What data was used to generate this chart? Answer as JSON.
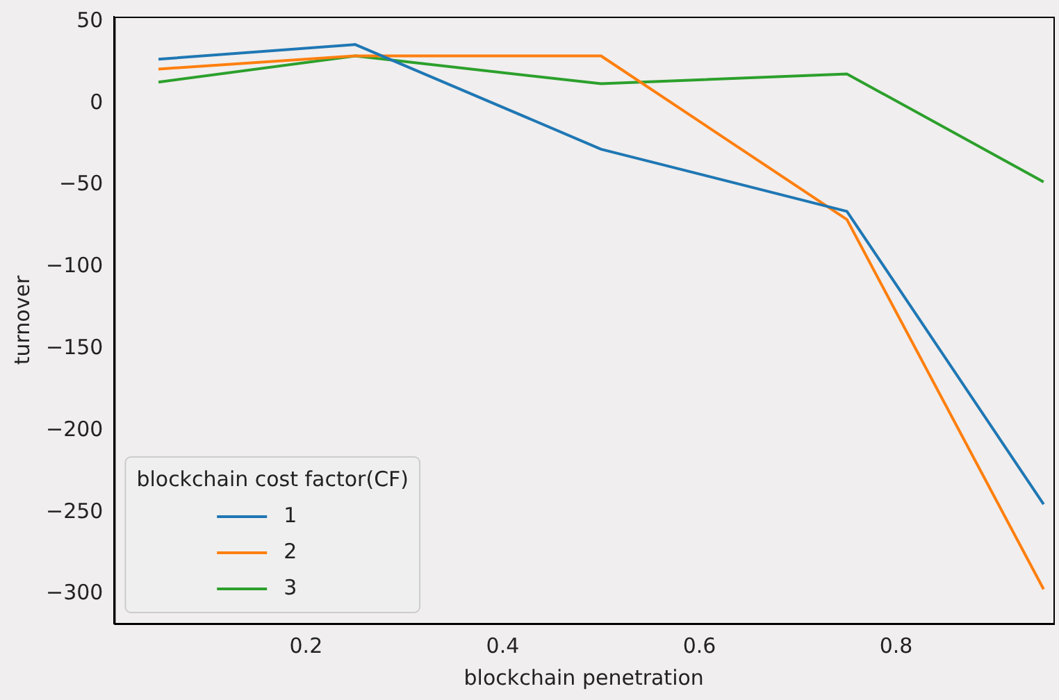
{
  "chart_data": {
    "type": "line",
    "xlabel": "blockchain penetration",
    "ylabel": "turnover",
    "legend_title": "blockchain cost factor(CF)",
    "legend": "bottom left",
    "grid": false,
    "marker": "none",
    "x": [
      0.05,
      0.25,
      0.5,
      0.75,
      0.95
    ],
    "xlim": [
      0.005,
      0.96
    ],
    "xticks": [
      0.2,
      0.4,
      0.6,
      0.8
    ],
    "ylim": [
      -318,
      53
    ],
    "yticks": [
      50,
      0,
      {
        "value": -50,
        "label": "−50"
      },
      {
        "value": -100,
        "label": "−100"
      },
      {
        "value": -150,
        "label": "−150"
      },
      {
        "value": -200,
        "label": "−200"
      },
      {
        "value": -250,
        "label": "−250"
      },
      {
        "value": -300,
        "label": "−300"
      }
    ],
    "series": [
      {
        "name": "1",
        "color": "#1f77b4",
        "values": [
          27,
          36,
          -28,
          -66,
          -245
        ]
      },
      {
        "name": "2",
        "color": "#ff7f0e",
        "values": [
          21,
          29,
          29,
          -71,
          -297
        ]
      },
      {
        "name": "3",
        "color": "#2ca02c",
        "values": [
          13,
          29,
          12,
          18,
          -48
        ]
      }
    ]
  }
}
